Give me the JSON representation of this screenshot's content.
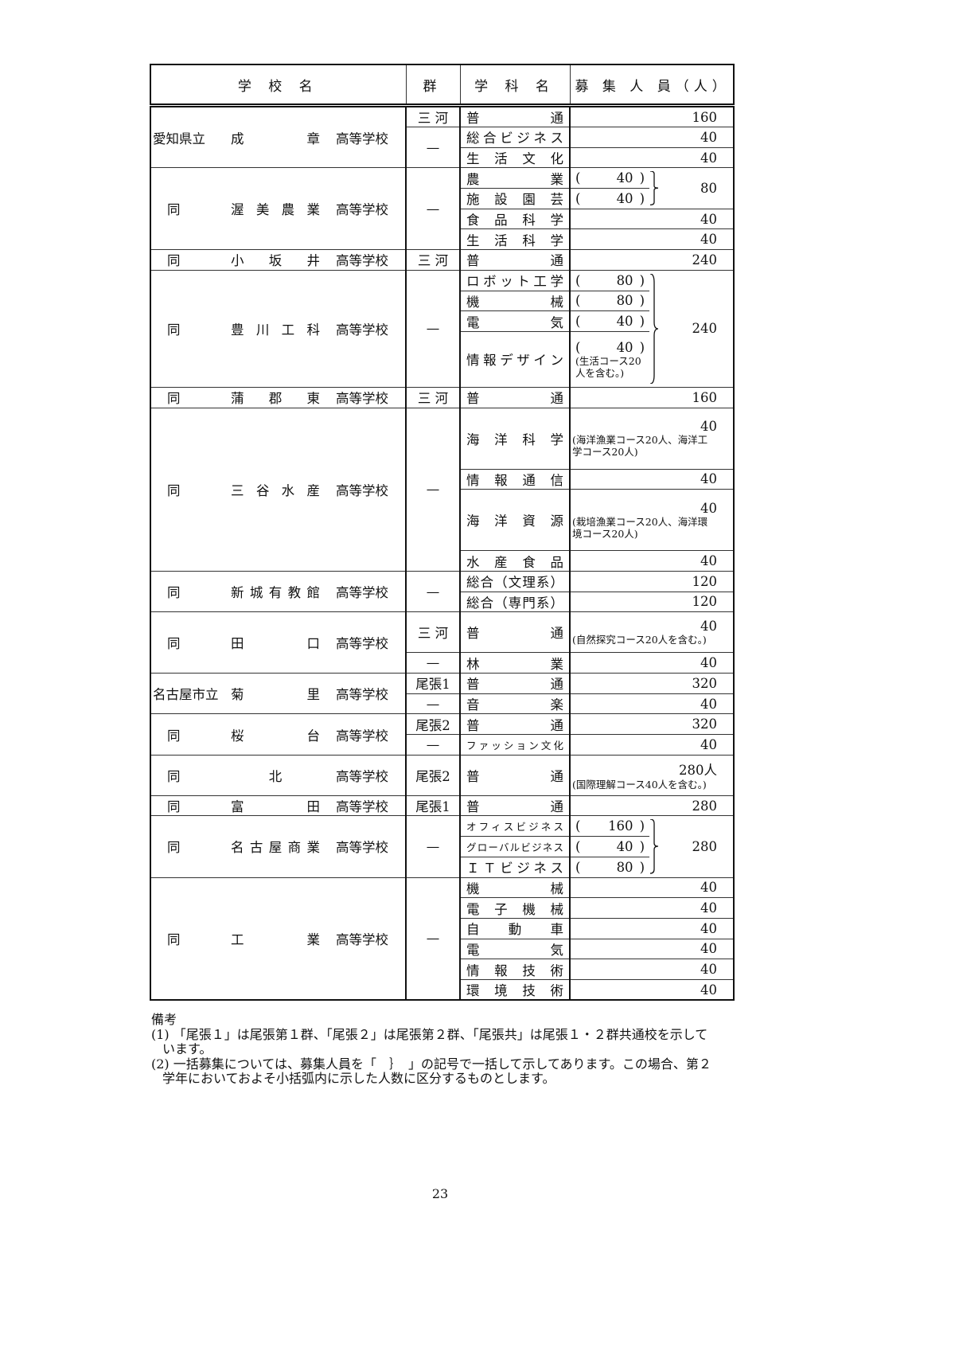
{
  "header": {
    "school": "学 校 名",
    "group": "群",
    "dept": "学 科 名",
    "count": "募 集 人 員（人）"
  },
  "schools": [
    {
      "prefix": "愛知県立",
      "name": "成章",
      "suffix": "高等学校",
      "rows": [
        {
          "group": "三 河",
          "dept": "普通",
          "count": "160"
        },
        {
          "group": "—",
          "gspan": 2,
          "dept": "総合ビジネス",
          "count": "40"
        },
        {
          "dept": "生活文化",
          "count": "40"
        }
      ]
    },
    {
      "prefix": "同",
      "name": "渥美農業",
      "suffix": "高等学校",
      "rows": [
        {
          "group": "—",
          "gspan": 4,
          "dept": "農業",
          "sub": "40",
          "total": "80",
          "tspan": 2
        },
        {
          "dept": "施設園芸",
          "sub": "40"
        },
        {
          "dept": "食品科学",
          "count": "40"
        },
        {
          "dept": "生活科学",
          "count": "40"
        }
      ]
    },
    {
      "prefix": "同",
      "name": "小坂井",
      "suffix": "高等学校",
      "rows": [
        {
          "group": "三 河",
          "dept": "普通",
          "count": "240"
        }
      ]
    },
    {
      "prefix": "同",
      "name": "豊川工科",
      "suffix": "高等学校",
      "rows": [
        {
          "group": "—",
          "gspan": 4,
          "dept": "ロボット工学",
          "sub": "80",
          "total": "240",
          "tspan": 4
        },
        {
          "dept": "機械",
          "sub": "80"
        },
        {
          "dept": "電気",
          "sub": "40"
        },
        {
          "dept": "情報デザイン",
          "sub": "40",
          "note": "(生活コース20人を含む。)"
        }
      ]
    },
    {
      "prefix": "同",
      "name": "蒲郡東",
      "suffix": "高等学校",
      "rows": [
        {
          "group": "三 河",
          "dept": "普通",
          "count": "160"
        }
      ]
    },
    {
      "prefix": "同",
      "name": "三谷水産",
      "suffix": "高等学校",
      "rows": [
        {
          "group": "—",
          "gspan": 4,
          "dept": "海洋科学",
          "count": "40",
          "note": "(海洋漁業コース20人、海洋工学コース20人)"
        },
        {
          "dept": "情報通信",
          "count": "40"
        },
        {
          "dept": "海洋資源",
          "count": "40",
          "note": "(栽培漁業コース20人、海洋環境コース20人)"
        },
        {
          "dept": "水産食品",
          "count": "40"
        }
      ]
    },
    {
      "prefix": "同",
      "name": "新城有教館",
      "suffix": "高等学校",
      "rows": [
        {
          "group": "—",
          "gspan": 2,
          "dept": "総合（文理系）",
          "count": "120"
        },
        {
          "dept": "総合（専門系）",
          "count": "120"
        }
      ]
    },
    {
      "prefix": "同",
      "name": "田口",
      "suffix": "高等学校",
      "rows": [
        {
          "group": "三 河",
          "dept": "普通",
          "count": "40",
          "note": "(自然探究コース20人を含む。)"
        },
        {
          "group": "—",
          "dept": "林業",
          "count": "40"
        }
      ]
    },
    {
      "prefix": "名古屋市立",
      "name": "菊里",
      "suffix": "高等学校",
      "rows": [
        {
          "group": "尾張1",
          "dept": "普通",
          "count": "320"
        },
        {
          "group": "—",
          "dept": "音楽",
          "count": "40"
        }
      ]
    },
    {
      "prefix": "同",
      "name": "桜台",
      "suffix": "高等学校",
      "rows": [
        {
          "group": "尾張2",
          "dept": "普通",
          "count": "320"
        },
        {
          "group": "—",
          "dept": "ファッション文化",
          "count": "40",
          "small": true
        }
      ]
    },
    {
      "prefix": "同",
      "name": "北",
      "suffix": "高等学校",
      "rows": [
        {
          "group": "尾張2",
          "dept": "普通",
          "count": "280人",
          "note": "(国際理解コース40人を含む。)"
        }
      ]
    },
    {
      "prefix": "同",
      "name": "富田",
      "suffix": "高等学校",
      "rows": [
        {
          "group": "尾張1",
          "dept": "普通",
          "count": "280"
        }
      ]
    },
    {
      "prefix": "同",
      "name": "名古屋商業",
      "suffix": "高等学校",
      "rows": [
        {
          "group": "—",
          "gspan": 3,
          "dept": "オフィスビジネス",
          "sub": "160",
          "total": "280",
          "tspan": 3,
          "small": true
        },
        {
          "dept": "グローバルビジネス",
          "sub": "40",
          "small": true
        },
        {
          "dept": "ＩＴビジネス",
          "sub": "80"
        }
      ]
    },
    {
      "prefix": "同",
      "name": "工業",
      "suffix": "高等学校",
      "rows": [
        {
          "group": "—",
          "gspan": 6,
          "dept": "機械",
          "count": "40"
        },
        {
          "dept": "電子機械",
          "count": "40"
        },
        {
          "dept": "自動車",
          "count": "40"
        },
        {
          "dept": "電気",
          "count": "40"
        },
        {
          "dept": "情報技術",
          "count": "40"
        },
        {
          "dept": "環境技術",
          "count": "40"
        }
      ]
    }
  ],
  "notes": {
    "title": "備考",
    "items": [
      "(1) 「尾張１」は尾張第１群、「尾張２」は尾張第２群、「尾張共」は尾張１・２群共通校を示しています。",
      "(2) 一括募集については、募集人員を「　｝　」の記号で一括して示してあります。この場合、第２学年においておよそ小括弧内に示した人数に区分するものとします。"
    ]
  },
  "page_number": "23"
}
